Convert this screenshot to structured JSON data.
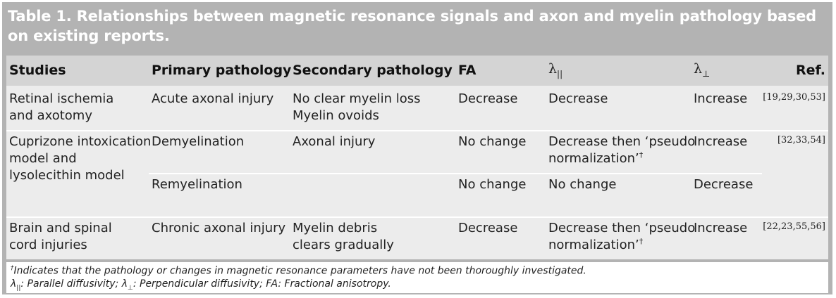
{
  "table": {
    "title": "Table 1. Relationships between magnetic resonance signals and axon and myelin pathology based on existing reports.",
    "headers": {
      "studies": "Studies",
      "primary": "Primary pathology",
      "secondary": "Secondary pathology",
      "fa": "FA",
      "lambda_par": "λ",
      "lambda_par_sub": "||",
      "lambda_perp": "λ",
      "lambda_perp_sub": "⊥",
      "ref": "Ref."
    },
    "rows": [
      {
        "studies": "Retinal ischemia\nand axotomy",
        "primary": "Acute axonal injury",
        "secondary": "No clear myelin loss\nMyelin ovoids",
        "fa": "Decrease",
        "lambda_par": "Decrease",
        "lambda_perp": "Increase",
        "ref": "[19,29,30,53]"
      },
      {
        "studies": "Cuprizone intoxication\nmodel and\nlysolecithin model",
        "primary": "Demyelination",
        "secondary": "Axonal injury",
        "fa": "No change",
        "lambda_par": "Decrease then ‘pseudo\nnormalization’",
        "lambda_par_mark": "†",
        "lambda_perp": "Increase",
        "ref": "[32,33,54]"
      },
      {
        "studies": "",
        "primary": "Remyelination",
        "secondary": "",
        "fa": "No change",
        "lambda_par": "No change",
        "lambda_perp": "Decrease",
        "ref": ""
      },
      {
        "studies": "Brain and spinal\ncord injuries",
        "primary": "Chronic axonal injury",
        "secondary": "Myelin debris\nclears gradually",
        "fa": "Decrease",
        "lambda_par": "Decrease then ‘pseudo\nnormalization’",
        "lambda_par_mark": "†",
        "lambda_perp": "Increase",
        "ref": "[22,23,55,56]"
      }
    ],
    "footnotes": {
      "dagger": "†",
      "note1": "Indicates that the pathology or changes in magnetic resonance parameters have not been thoroughly investigated.",
      "sym_par": "λ",
      "sym_par_sub": "||",
      "par_text": ": Parallel diffusivity; ",
      "sym_perp": "λ",
      "sym_perp_sub": "⊥",
      "perp_text": ": Perpendicular diffusivity; FA: Fractional anisotropy."
    }
  }
}
